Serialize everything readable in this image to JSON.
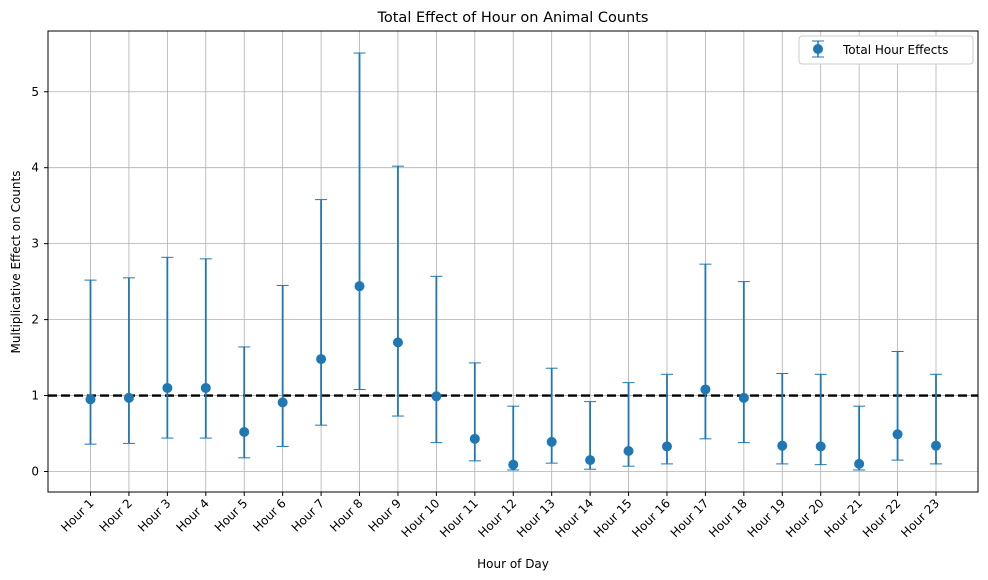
{
  "chart_data": {
    "type": "scatter",
    "title": "Total Effect of Hour on Animal Counts",
    "xlabel": "Hour of Day",
    "ylabel": "Multiplicative Effect on Counts",
    "categories": [
      "Hour 1",
      "Hour 2",
      "Hour 3",
      "Hour 4",
      "Hour 5",
      "Hour 6",
      "Hour 7",
      "Hour 8",
      "Hour 9",
      "Hour 10",
      "Hour 11",
      "Hour 12",
      "Hour 13",
      "Hour 14",
      "Hour 15",
      "Hour 16",
      "Hour 17",
      "Hour 18",
      "Hour 19",
      "Hour 20",
      "Hour 21",
      "Hour 22",
      "Hour 23"
    ],
    "series": [
      {
        "name": "Total Hour Effects",
        "values": [
          0.95,
          0.97,
          1.1,
          1.1,
          0.52,
          0.91,
          1.48,
          2.44,
          1.7,
          0.99,
          0.43,
          0.09,
          0.39,
          0.15,
          0.27,
          0.33,
          1.08,
          0.97,
          0.34,
          0.33,
          0.1,
          0.49,
          0.34
        ],
        "lower": [
          0.36,
          0.37,
          0.44,
          0.44,
          0.18,
          0.33,
          0.61,
          1.08,
          0.73,
          0.38,
          0.14,
          0.02,
          0.11,
          0.03,
          0.07,
          0.1,
          0.43,
          0.38,
          0.1,
          0.09,
          0.02,
          0.15,
          0.1
        ],
        "upper": [
          2.52,
          2.55,
          2.82,
          2.8,
          1.64,
          2.45,
          3.58,
          5.51,
          4.02,
          2.57,
          1.43,
          0.86,
          1.36,
          0.92,
          1.17,
          1.28,
          2.73,
          2.5,
          1.29,
          1.28,
          0.86,
          1.58,
          1.28
        ]
      }
    ],
    "reference_line": {
      "y": 1,
      "style": "dashed",
      "color": "#000000"
    },
    "ylim": [
      -0.27,
      5.8
    ],
    "yticks": [
      0,
      1,
      2,
      3,
      4,
      5
    ],
    "grid": true,
    "legend": "top-right",
    "colors": {
      "series": "#1f77b4"
    }
  }
}
